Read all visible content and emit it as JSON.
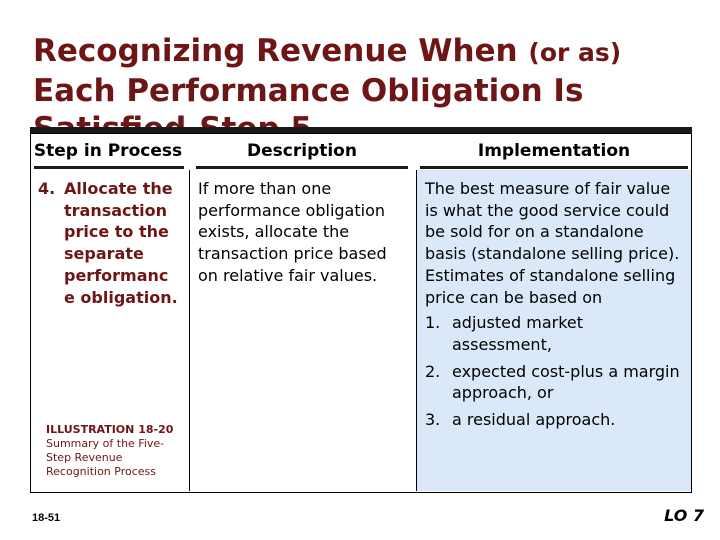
{
  "slide": {
    "title_before": "Recognizing Revenue When ",
    "title_paren": "(or as)",
    "title_after": " Each Performance Obligation Is Satisfied-Step 5",
    "page_number": "18-51",
    "lo_label": "LO 7"
  },
  "table": {
    "headers": {
      "step": "Step in Process",
      "description": "Description",
      "implementation": "Implementation"
    },
    "step": {
      "number": "4.",
      "text": "Allocate the transaction price to the separate performanc e obligation."
    },
    "description": "If more than one performance obligation exists, allocate the transaction price based on relative fair values.",
    "implementation": {
      "intro": "The best measure of fair value is what the good service could be sold for on a standalone basis (standalone selling price). Estimates of standalone selling price can be based on",
      "items": [
        {
          "num": "1.",
          "text": "adjusted market assessment,"
        },
        {
          "num": "2.",
          "text": "expected cost-plus a margin approach, or"
        },
        {
          "num": "3.",
          "text": "a residual approach."
        }
      ]
    }
  },
  "illustration": {
    "label": "ILLUSTRATION 18-20",
    "caption": "Summary of the Five-Step Revenue Recognition Process"
  }
}
